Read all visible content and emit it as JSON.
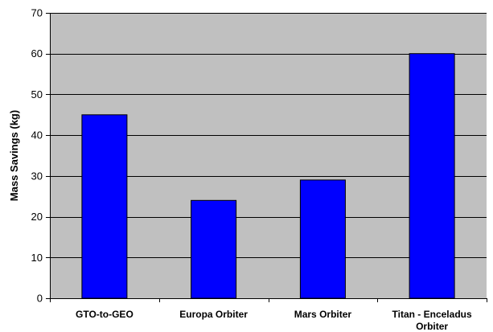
{
  "chart_data": {
    "type": "bar",
    "title": "",
    "xlabel": "",
    "ylabel": "Mass Savings (kg)",
    "categories": [
      [
        "GTO-to-GEO"
      ],
      [
        "Europa Orbiter"
      ],
      [
        "Mars Orbiter"
      ],
      [
        "Titan - Enceladus",
        "Orbiter"
      ]
    ],
    "values": [
      45,
      24,
      29,
      60
    ],
    "ylim": [
      0,
      70
    ],
    "yticks": [
      0,
      10,
      20,
      30,
      40,
      50,
      60,
      70
    ],
    "grid": true,
    "legend": "none",
    "colors": {
      "plot_background": "#c0c0c0",
      "bar_fill": "#0000ff",
      "bar_stroke": "#000000",
      "gridline": "#000000"
    }
  }
}
